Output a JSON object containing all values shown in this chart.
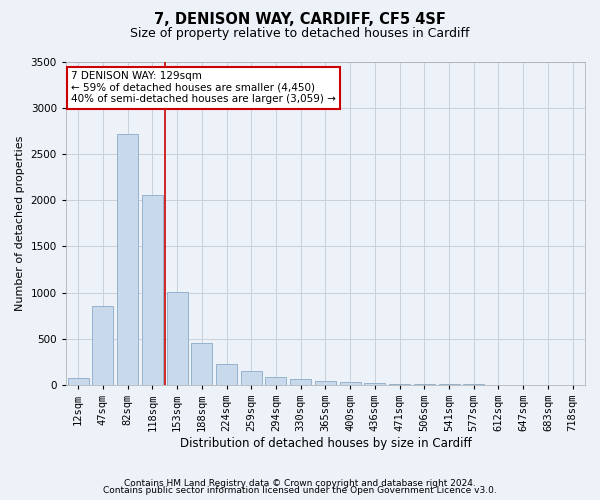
{
  "title": "7, DENISON WAY, CARDIFF, CF5 4SF",
  "subtitle": "Size of property relative to detached houses in Cardiff",
  "xlabel": "Distribution of detached houses by size in Cardiff",
  "ylabel": "Number of detached properties",
  "footnote1": "Contains HM Land Registry data © Crown copyright and database right 2024.",
  "footnote2": "Contains public sector information licensed under the Open Government Licence v3.0.",
  "annotation_line1": "7 DENISON WAY: 129sqm",
  "annotation_line2": "← 59% of detached houses are smaller (4,450)",
  "annotation_line3": "40% of semi-detached houses are larger (3,059) →",
  "categories": [
    "12sqm",
    "47sqm",
    "82sqm",
    "118sqm",
    "153sqm",
    "188sqm",
    "224sqm",
    "259sqm",
    "294sqm",
    "330sqm",
    "365sqm",
    "400sqm",
    "436sqm",
    "471sqm",
    "506sqm",
    "541sqm",
    "577sqm",
    "612sqm",
    "647sqm",
    "683sqm",
    "718sqm"
  ],
  "values": [
    70,
    850,
    2720,
    2060,
    1010,
    450,
    225,
    155,
    90,
    60,
    45,
    30,
    20,
    15,
    10,
    8,
    5,
    4,
    3,
    2,
    2
  ],
  "bar_color": "#c9d9ec",
  "bar_edge_color": "#8aaac8",
  "vline_color": "#cc0000",
  "vline_x_index": 3,
  "annotation_box_facecolor": "#ffffff",
  "annotation_box_edgecolor": "#cc0000",
  "grid_color": "#c8d0dc",
  "background_color": "#edf1f8",
  "ylim": [
    0,
    3500
  ],
  "yticks": [
    0,
    500,
    1000,
    1500,
    2000,
    2500,
    3000,
    3500
  ],
  "title_fontsize": 10.5,
  "subtitle_fontsize": 9,
  "ylabel_fontsize": 8,
  "xlabel_fontsize": 8.5,
  "tick_fontsize": 7.5,
  "annotation_fontsize": 7.5,
  "footnote_fontsize": 6.5
}
